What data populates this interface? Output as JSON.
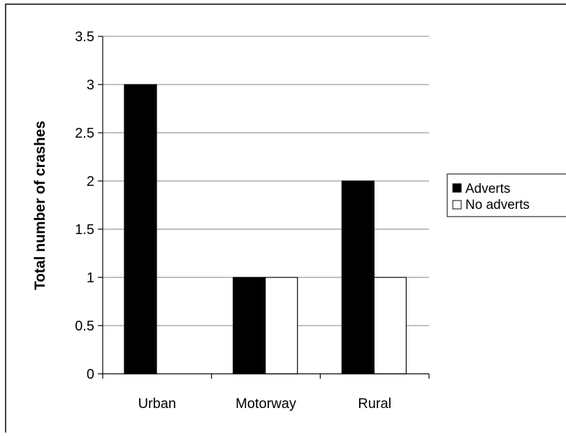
{
  "chart_data": {
    "type": "bar",
    "title": "",
    "xlabel": "",
    "ylabel": "Total number of crashes",
    "categories": [
      "Urban",
      "Motorway",
      "Rural"
    ],
    "series": [
      {
        "name": "Adverts",
        "values": [
          3,
          1,
          2
        ],
        "color": "#000000"
      },
      {
        "name": "No adverts",
        "values": [
          0,
          1,
          1
        ],
        "color": "#ffffff"
      }
    ],
    "ylim": [
      0,
      3.5
    ],
    "yticks": [
      "0",
      "0.5",
      "1",
      "1.5",
      "2",
      "2.5",
      "3",
      "3.5"
    ],
    "ytick_values": [
      0,
      0.5,
      1,
      1.5,
      2,
      2.5,
      3,
      3.5
    ],
    "grid": true,
    "legend": "right"
  }
}
